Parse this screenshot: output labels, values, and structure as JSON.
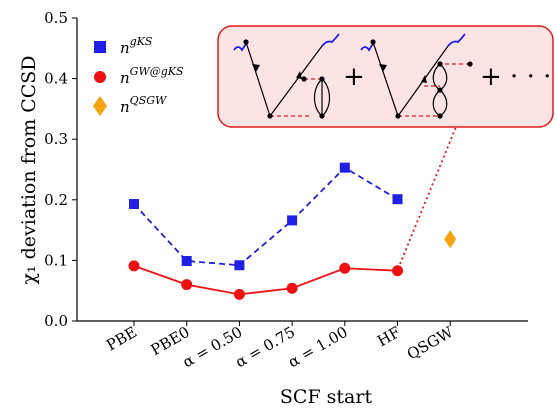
{
  "chart_data": {
    "type": "scatter",
    "categories": [
      "PBE",
      "PBE0",
      "α = 0.50",
      "α = 0.75",
      "α = 1.00",
      "HF",
      "QSGW"
    ],
    "xlabel": "SCF start",
    "ylabel": "χ₁ deviation from CCSD",
    "ylim": [
      0,
      0.5
    ],
    "yticks": [
      "0.0",
      "0.1",
      "0.2",
      "0.3",
      "0.4",
      "0.5"
    ],
    "grid": false,
    "legend_position": "top-left",
    "series": [
      {
        "name": "n^gKS",
        "legend_base": "n",
        "legend_sup": "gKS",
        "marker": "square",
        "line": "dashed",
        "color": "#1f1fe6",
        "x": [
          0,
          1,
          2,
          3,
          4,
          5
        ],
        "values": [
          0.193,
          0.099,
          0.092,
          0.166,
          0.253,
          0.201
        ]
      },
      {
        "name": "n^GW@gKS",
        "legend_base": "n",
        "legend_sup": "GW@gKS",
        "marker": "circle",
        "line": "solid",
        "color": "#ee1111",
        "x": [
          0,
          1,
          2,
          3,
          4,
          5
        ],
        "values": [
          0.091,
          0.06,
          0.044,
          0.054,
          0.087,
          0.083
        ]
      },
      {
        "name": "n^QSGW",
        "legend_base": "n",
        "legend_sup": "QSGW",
        "marker": "diamond",
        "line": "none",
        "color": "#f5a310",
        "x": [
          6
        ],
        "values": [
          0.135
        ]
      }
    ],
    "inset": {
      "plus_1": "+",
      "plus_2": "+ · · ·",
      "background": "#fde4e4",
      "border": "#e21b1b"
    },
    "connector_color": "#e21b1b"
  }
}
